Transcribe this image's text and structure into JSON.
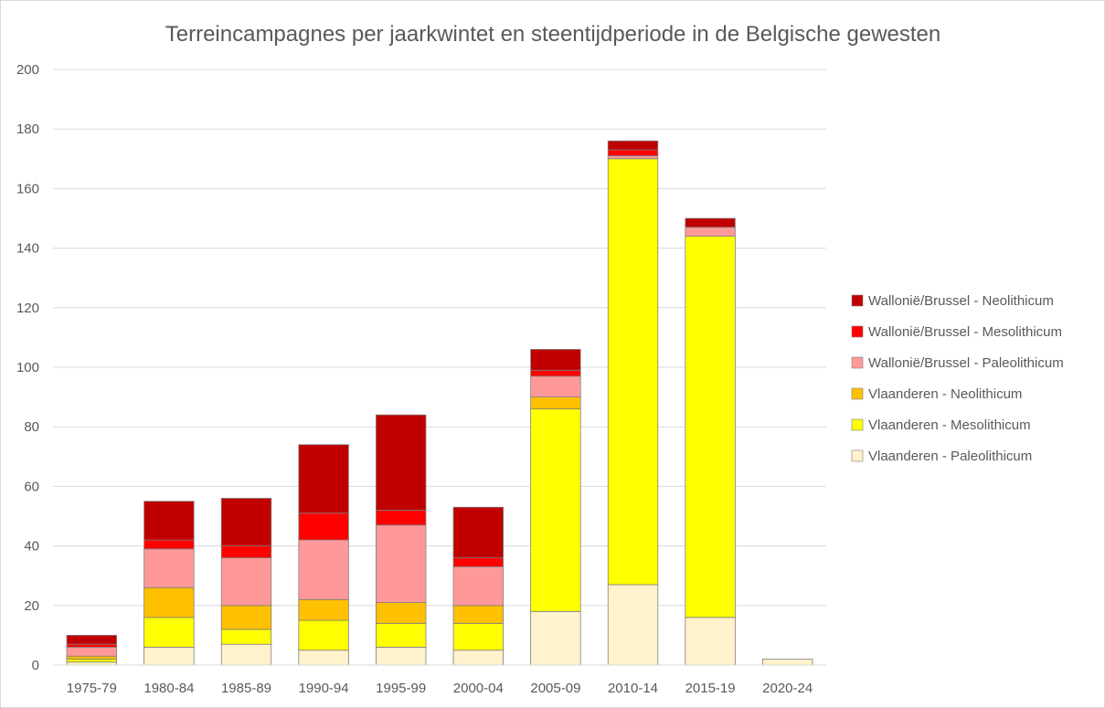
{
  "chart_data": {
    "type": "bar",
    "stacked": true,
    "title": "Terreincampagnes per jaarkwintet en steentijdperiode in de Belgische gewesten",
    "xlabel": "",
    "ylabel": "",
    "ylim": [
      0,
      200
    ],
    "yticks": [
      0,
      20,
      40,
      60,
      80,
      100,
      120,
      140,
      160,
      180,
      200
    ],
    "grid": true,
    "legend_position": "right",
    "categories": [
      "1975-79",
      "1980-84",
      "1985-89",
      "1990-94",
      "1995-99",
      "2000-04",
      "2005-09",
      "2010-14",
      "2015-19",
      "2020-24"
    ],
    "series": [
      {
        "name": "Vlaanderen - Paleolithicum",
        "color": "#fff2cc",
        "values": [
          1,
          6,
          7,
          5,
          6,
          5,
          18,
          27,
          16,
          2
        ]
      },
      {
        "name": "Vlaanderen - Mesolithicum",
        "color": "#ffff00",
        "values": [
          1,
          10,
          5,
          10,
          8,
          9,
          68,
          143,
          128,
          0
        ]
      },
      {
        "name": "Vlaanderen - Neolithicum",
        "color": "#ffc000",
        "values": [
          1,
          10,
          8,
          7,
          7,
          6,
          4,
          0,
          0,
          0
        ]
      },
      {
        "name": "Wallonië/Brussel - Paleolithicum",
        "color": "#ff9999",
        "values": [
          3,
          13,
          16,
          20,
          26,
          13,
          7,
          1,
          3,
          0
        ]
      },
      {
        "name": "Wallonië/Brussel - Mesolithicum",
        "color": "#ff0000",
        "values": [
          1,
          3,
          4,
          9,
          5,
          3,
          2,
          2,
          0,
          0
        ]
      },
      {
        "name": "Wallonië/Brussel - Neolithicum",
        "color": "#c00000",
        "values": [
          3,
          13,
          16,
          23,
          32,
          17,
          7,
          3,
          3,
          0
        ]
      }
    ]
  }
}
